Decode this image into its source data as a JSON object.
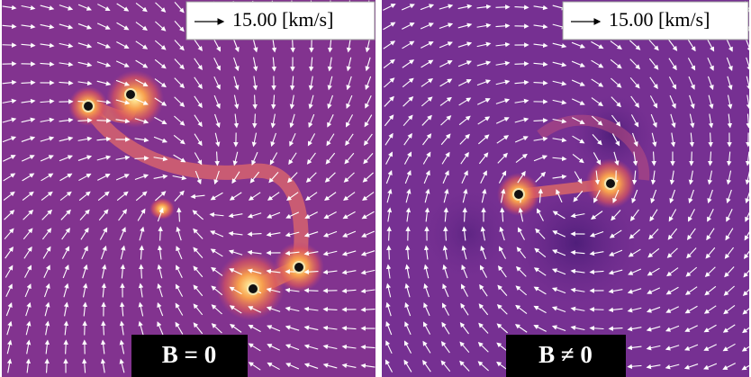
{
  "panels": [
    {
      "legend": {
        "text": "15.00 [km/s]"
      },
      "label": "B = 0"
    },
    {
      "legend": {
        "text": "15.00 [km/s]"
      },
      "label": "B ≠ 0"
    }
  ]
}
